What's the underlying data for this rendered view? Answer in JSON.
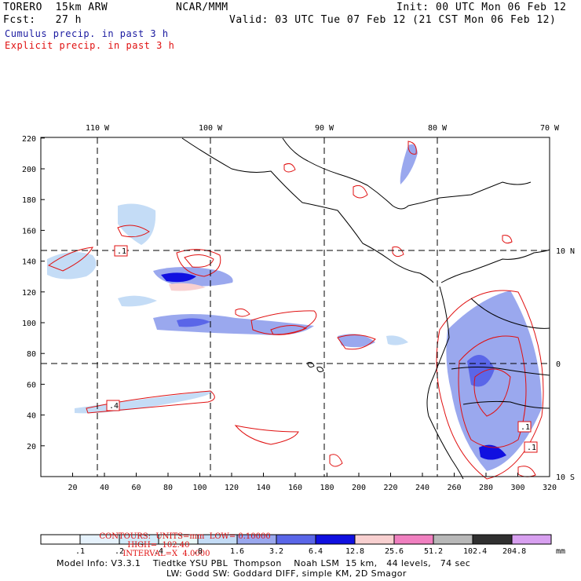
{
  "header": {
    "model": "TORERO  15km ARW",
    "org": "NCAR/MMM",
    "init": "Init: 00 UTC Mon 06 Feb 12",
    "fcst": "Fcst:   27 h",
    "valid": "Valid: 03 UTC Tue 07 Feb 12 (21 CST Mon 06 Feb 12)",
    "line_cumulus": "Cumulus precip. in past 3 h",
    "line_explicit": "Explicit precip. in past 3 h"
  },
  "axes": {
    "bottom": [
      "20",
      "40",
      "60",
      "80",
      "100",
      "120",
      "140",
      "160",
      "180",
      "200",
      "220",
      "240",
      "260",
      "280",
      "300",
      "320"
    ],
    "left": [
      "20",
      "40",
      "60",
      "80",
      "100",
      "120",
      "140",
      "160",
      "180",
      "200",
      "220"
    ],
    "top": [
      "110 W",
      "100 W",
      "90 W",
      "80 W",
      "70 W"
    ],
    "right": [
      "10 N",
      "0",
      "10 S"
    ]
  },
  "box_labels": [
    ".1",
    ".4",
    ".1",
    ".1"
  ],
  "contours": {
    "units": "CONTOURS:  UNITS=mm  LOW= 0.10000",
    "high": "HIGH=  102.40",
    "interval": "INTERVAL=X  4.0000"
  },
  "colorbar": {
    "unit": "mm",
    "labels": [
      ".1",
      ".2",
      ".4",
      ".8",
      "1.6",
      "3.2",
      "6.4",
      "12.8",
      "25.6",
      "51.2",
      "102.4",
      "204.8"
    ],
    "colors": [
      "#ffffff",
      "#e6f2fc",
      "#d2ebfa",
      "#e8f8f8",
      "#c4dcf6",
      "#9aa8ee",
      "#5a66e8",
      "#1010e0",
      "#f8d0d0",
      "#f080c0",
      "#b8b8b8",
      "#303030",
      "#d8a0f0"
    ]
  },
  "footer": {
    "line1": "Model Info: V3.3.1    Tiedtke YSU PBL  Thompson    Noah LSM  15 km,   44 levels,   74 sec",
    "line2": "LW: Godd SW: Goddard DIFF, simple KM, 2D Smagor"
  },
  "colors": {
    "cumulus": "#1a1aa0",
    "explicit": "#e01010"
  }
}
